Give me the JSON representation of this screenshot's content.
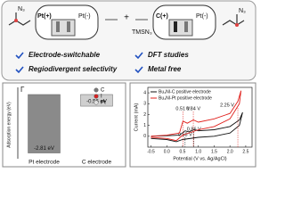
{
  "scheme": {
    "left_group": "N₃",
    "left_anode": "Pt(+)",
    "left_cathode": "Pt(-)",
    "plus": "+",
    "reagent": "TMSN₃",
    "right_anode": "C(+)",
    "right_cathode": "Pt(-)",
    "right_group": "N₃",
    "features": [
      "Electrode-switchable",
      "Regiodivergent selectivity",
      "DFT studies",
      "Metal free"
    ]
  },
  "chart_data": [
    {
      "type": "bar",
      "y_label": "Adsorption energy (eV)",
      "annotation": "Γ",
      "categories": [
        "Pt electrode",
        "C electrode"
      ],
      "values": [
        -2.81,
        -0.56
      ],
      "value_labels": [
        "-2.81 eV",
        "-0.56 eV"
      ],
      "colors": [
        "#8a8a8a",
        "#cfcfcf"
      ],
      "ylim": [
        -3,
        0
      ],
      "legend": [
        "C",
        "I",
        "Pt"
      ],
      "legend_colors": [
        "#777777",
        "#d62020",
        "#e0e0e0"
      ]
    },
    {
      "type": "line",
      "x_label": "Potential (V vs. Ag/AgCl)",
      "y_label": "Current (mA)",
      "xlim": [
        -0.6,
        2.7
      ],
      "ylim": [
        -1,
        4.5
      ],
      "xticks": [
        -0.5,
        {
          "value": 0,
          "label": "0.0"
        },
        0.5,
        {
          "value": 1,
          "label": "1.0"
        },
        1.5,
        {
          "value": 2,
          "label": "2.0"
        },
        2.5
      ],
      "yticks": [
        0,
        1,
        2,
        3,
        4
      ],
      "legend": "upper left",
      "series": [
        {
          "name": "Bu₄NI-C positive electrode",
          "color": "#111111",
          "x": [
            -0.5,
            0,
            0.4,
            0.58,
            0.7,
            0.86,
            1.0,
            1.5,
            2.0,
            2.3,
            2.4,
            2.3,
            2.0,
            1.5,
            1.0,
            0.5,
            0.3,
            0,
            -0.5
          ],
          "values": [
            0,
            0.05,
            0.1,
            0.5,
            0.4,
            0.6,
            0.5,
            0.6,
            0.9,
            1.5,
            2.2,
            1.0,
            0.3,
            0,
            -0.1,
            -0.3,
            -0.5,
            -0.3,
            -0.2
          ],
          "peaks": [
            0.58,
            0.86
          ],
          "peak_labels": [
            "0.58 V",
            "0.86 V"
          ]
        },
        {
          "name": "Bu₄NI-Pt positive electrode",
          "color": "#e0201c",
          "x": [
            -0.5,
            0,
            0.4,
            0.51,
            0.65,
            0.84,
            1.0,
            1.5,
            2.0,
            2.25,
            2.35,
            2.3,
            2.0,
            1.5,
            1.0,
            0.5,
            0.3,
            0,
            -0.5
          ],
          "values": [
            0,
            0.1,
            0.3,
            1.4,
            1.2,
            1.5,
            1.3,
            1.6,
            2.1,
            3.2,
            4.2,
            3.0,
            1.6,
            0.9,
            0.6,
            0.1,
            -0.4,
            -0.2,
            -0.1
          ],
          "peaks": [
            0.51,
            0.84,
            2.25
          ],
          "peak_labels": [
            "0.51 V",
            "0.84 V",
            "2.25 V"
          ]
        }
      ]
    }
  ]
}
